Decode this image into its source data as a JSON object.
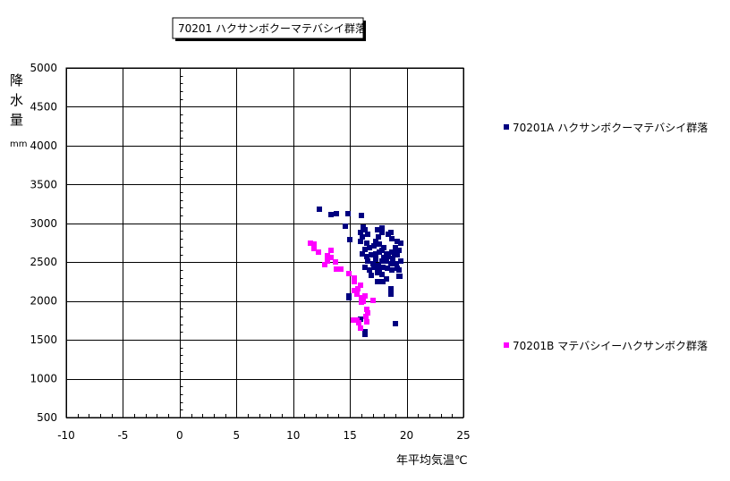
{
  "chart_data": {
    "type": "scatter",
    "title": "70201 ハクサンボクーマテバシイ群落",
    "xlabel": "年平均気温℃",
    "ylabel_chars": [
      "降",
      "水",
      "量"
    ],
    "ylabel_unit": "mm",
    "xlim": [
      -10,
      25
    ],
    "ylim": [
      500,
      5000
    ],
    "xticks": [
      -10,
      -5,
      0,
      5,
      10,
      15,
      20,
      25
    ],
    "yticks": [
      500,
      1000,
      1500,
      2000,
      2500,
      3000,
      3500,
      4000,
      4500,
      5000
    ],
    "grid": true,
    "legend_placement": "right",
    "series": [
      {
        "name": "70201A ハクサンボクーマテバシイ群落",
        "color": "#000080",
        "marker": "square",
        "points": [
          [
            12.3,
            3180
          ],
          [
            13.3,
            3110
          ],
          [
            13.8,
            3125
          ],
          [
            14.8,
            3125
          ],
          [
            16.0,
            3100
          ],
          [
            14.6,
            2965
          ],
          [
            15.0,
            2790
          ],
          [
            14.9,
            2040
          ],
          [
            14.9,
            2070
          ],
          [
            18.6,
            2130
          ],
          [
            18.6,
            2090
          ],
          [
            19.0,
            1705
          ],
          [
            16.3,
            1600
          ],
          [
            16.3,
            1570
          ],
          [
            15.9,
            1770
          ],
          [
            19.4,
            2320
          ],
          [
            19.3,
            2400
          ],
          [
            16.3,
            2919
          ],
          [
            15.9,
            2880
          ],
          [
            16.1,
            2823
          ],
          [
            15.9,
            2765
          ],
          [
            16.5,
            2746
          ],
          [
            16.6,
            2861
          ],
          [
            17.4,
            2919
          ],
          [
            17.8,
            2880
          ],
          [
            17.5,
            2823
          ],
          [
            17.3,
            2765
          ],
          [
            17.6,
            2727
          ],
          [
            18.0,
            2688
          ],
          [
            18.6,
            2880
          ],
          [
            18.7,
            2803
          ],
          [
            19.2,
            2765
          ],
          [
            19.5,
            2746
          ],
          [
            19.0,
            2688
          ],
          [
            19.3,
            2650
          ],
          [
            18.7,
            2631
          ],
          [
            18.2,
            2611
          ],
          [
            17.8,
            2650
          ],
          [
            17.1,
            2707
          ],
          [
            16.7,
            2688
          ],
          [
            16.3,
            2669
          ],
          [
            16.1,
            2611
          ],
          [
            16.5,
            2573
          ],
          [
            16.9,
            2592
          ],
          [
            17.3,
            2611
          ],
          [
            17.6,
            2631
          ],
          [
            18.4,
            2573
          ],
          [
            18.8,
            2554
          ],
          [
            19.2,
            2592
          ],
          [
            19.5,
            2515
          ],
          [
            19.1,
            2477
          ],
          [
            18.6,
            2477
          ],
          [
            18.2,
            2515
          ],
          [
            17.8,
            2515
          ],
          [
            17.3,
            2535
          ],
          [
            16.6,
            2515
          ],
          [
            16.3,
            2439
          ],
          [
            16.7,
            2400
          ],
          [
            17.1,
            2439
          ],
          [
            17.5,
            2458
          ],
          [
            17.9,
            2439
          ],
          [
            18.3,
            2419
          ],
          [
            18.7,
            2400
          ],
          [
            19.2,
            2419
          ],
          [
            17.4,
            2362
          ],
          [
            17.8,
            2343
          ],
          [
            18.2,
            2285
          ],
          [
            17.4,
            2247
          ],
          [
            17.9,
            2247
          ],
          [
            19.3,
            2323
          ],
          [
            18.6,
            2162
          ],
          [
            16.2,
            2957
          ],
          [
            17.8,
            2938
          ],
          [
            18.4,
            2861
          ],
          [
            17.0,
            2480
          ],
          [
            17.6,
            2400
          ],
          [
            18.0,
            2560
          ],
          [
            16.9,
            2330
          ],
          [
            18.9,
            2620
          ]
        ]
      },
      {
        "name": "70201B マテバシイーハクサンボク群落",
        "color": "#FF00FF",
        "marker": "square",
        "points": [
          [
            11.5,
            2745
          ],
          [
            11.8,
            2730
          ],
          [
            11.8,
            2670
          ],
          [
            12.2,
            2630
          ],
          [
            13.3,
            2650
          ],
          [
            13.0,
            2585
          ],
          [
            13.3,
            2555
          ],
          [
            12.8,
            2465
          ],
          [
            13.0,
            2510
          ],
          [
            13.7,
            2505
          ],
          [
            13.8,
            2410
          ],
          [
            14.2,
            2410
          ],
          [
            14.9,
            2350
          ],
          [
            15.4,
            2295
          ],
          [
            15.4,
            2245
          ],
          [
            15.9,
            2200
          ],
          [
            15.4,
            2130
          ],
          [
            15.6,
            2090
          ],
          [
            16.0,
            2040
          ],
          [
            16.2,
            2000
          ],
          [
            17.0,
            2010
          ],
          [
            16.0,
            1980
          ],
          [
            16.5,
            1890
          ],
          [
            16.6,
            1850
          ],
          [
            15.3,
            1760
          ],
          [
            15.6,
            1760
          ],
          [
            16.4,
            1800
          ],
          [
            16.5,
            1730
          ],
          [
            15.9,
            1655
          ],
          [
            15.8,
            1720
          ],
          [
            15.7,
            2160
          ],
          [
            16.3,
            2060
          ]
        ]
      }
    ]
  }
}
